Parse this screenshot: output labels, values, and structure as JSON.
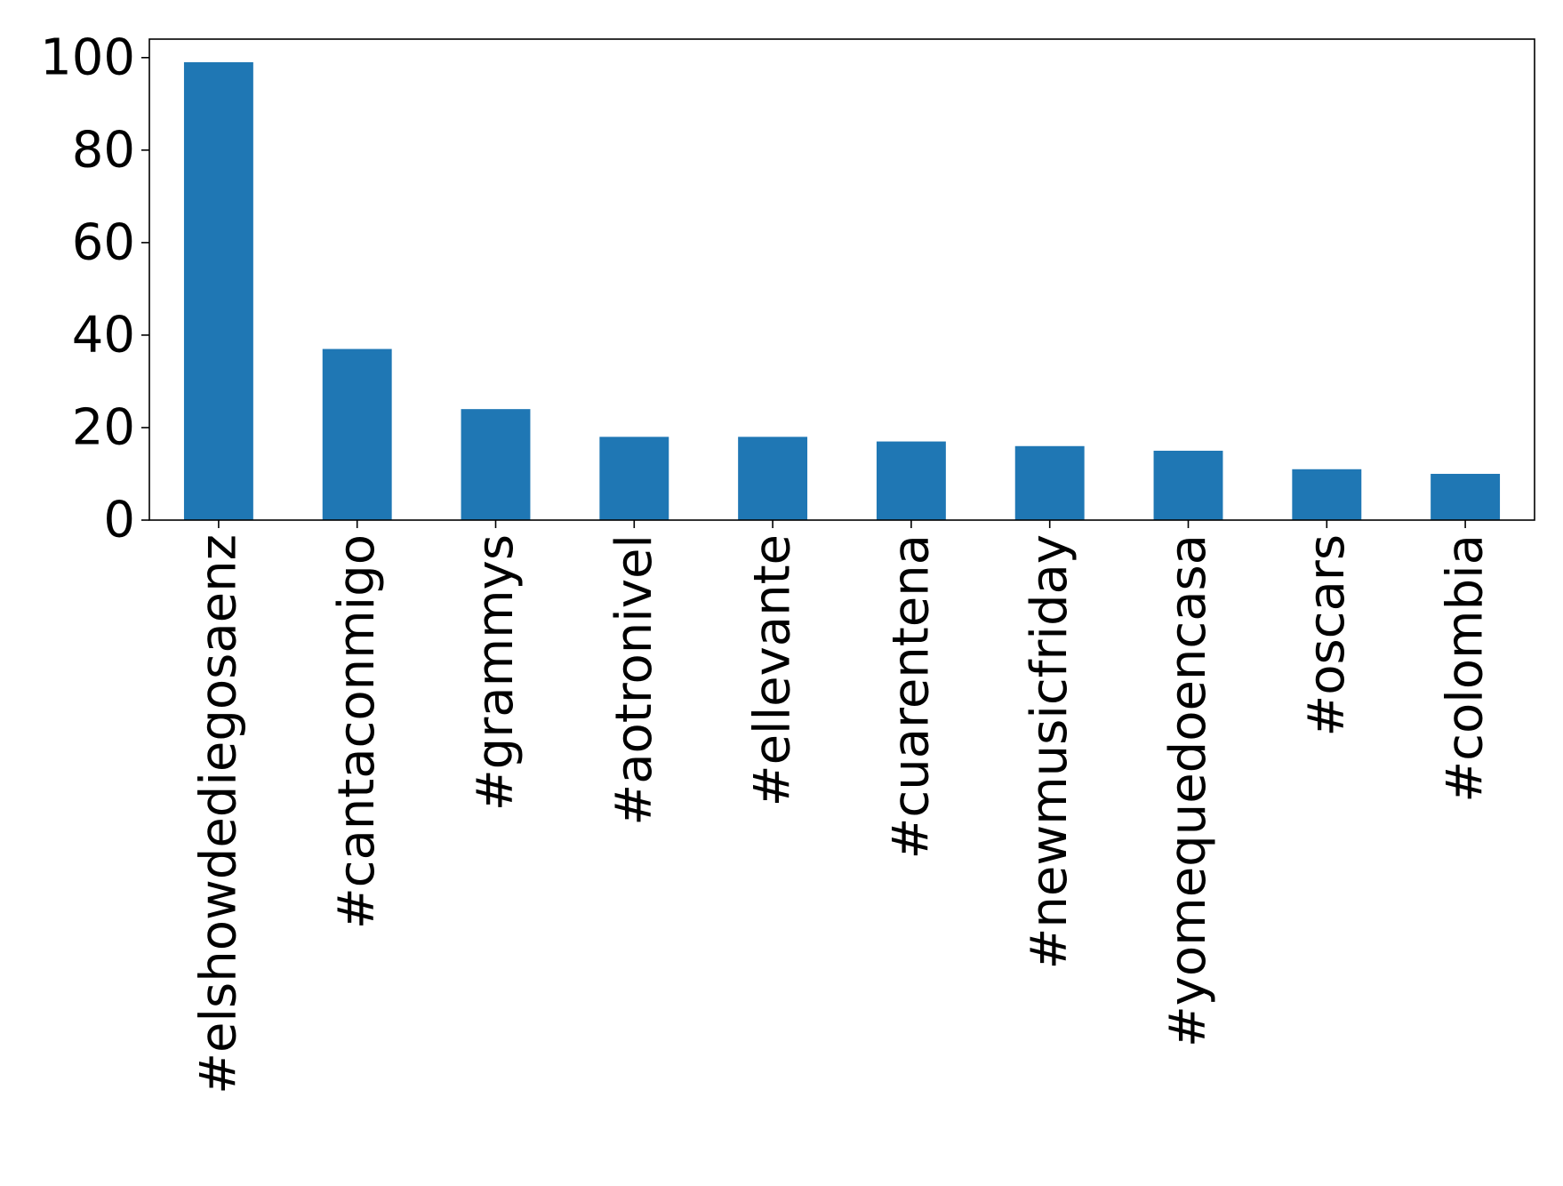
{
  "chart_data": {
    "type": "bar",
    "title": "",
    "xlabel": "",
    "ylabel": "",
    "categories": [
      "#elshowdediegosaenz",
      "#cantaconmigo",
      "#grammys",
      "#aotronivel",
      "#ellevante",
      "#cuarentena",
      "#newmusicfriday",
      "#yomequedoencasa",
      "#oscars",
      "#colombia"
    ],
    "values": [
      99,
      37,
      24,
      18,
      18,
      17,
      16,
      15,
      11,
      10
    ],
    "ylim": [
      0,
      104
    ],
    "yticks": [
      0,
      20,
      40,
      60,
      80,
      100
    ],
    "ytick_labels": [
      "0",
      "20",
      "40",
      "60",
      "80",
      "100"
    ],
    "bar_color": "#1f77b4",
    "grid": false,
    "legend": "none"
  }
}
